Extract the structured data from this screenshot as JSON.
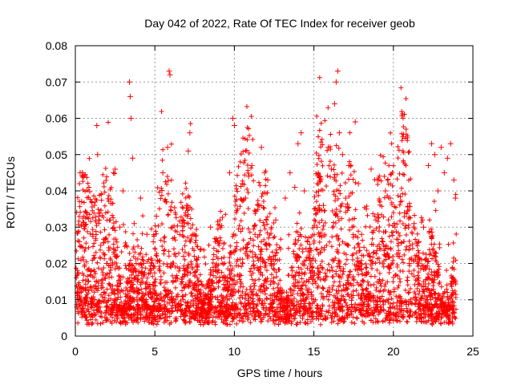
{
  "chart_data": {
    "type": "scatter",
    "title": "Day 042 of 2022, Rate Of TEC Index for receiver geob",
    "xlabel": "GPS time / hours",
    "ylabel": "ROTI / TECUs",
    "xlim": [
      0,
      25
    ],
    "ylim": [
      0,
      0.08
    ],
    "x_ticks": [
      0,
      5,
      10,
      15,
      20,
      25
    ],
    "y_ticks": [
      0,
      0.01,
      0.02,
      0.03,
      0.04,
      0.05,
      0.06,
      0.07,
      0.08
    ],
    "x_tick_labels": [
      "0",
      "5",
      "10",
      "15",
      "20",
      "25"
    ],
    "y_tick_labels": [
      "0",
      "0.01",
      "0.02",
      "0.03",
      "0.04",
      "0.05",
      "0.06",
      "0.07",
      "0.08"
    ],
    "grid": true,
    "marker": "+",
    "marker_color": "#ff0000",
    "series": [
      {
        "points": [
          [
            0.1,
            0.008
          ],
          [
            0.2,
            0.012
          ],
          [
            0.25,
            0.026
          ],
          [
            0.3,
            0.045
          ],
          [
            0.4,
            0.037
          ],
          [
            0.5,
            0.021
          ],
          [
            0.6,
            0.01
          ],
          [
            0.7,
            0.034
          ],
          [
            0.8,
            0.015
          ],
          [
            0.9,
            0.006
          ],
          [
            1.0,
            0.018
          ],
          [
            1.1,
            0.028
          ],
          [
            1.2,
            0.036
          ],
          [
            1.35,
            0.058
          ],
          [
            1.4,
            0.05
          ],
          [
            1.5,
            0.009
          ],
          [
            1.6,
            0.025
          ],
          [
            1.8,
            0.012
          ],
          [
            2.0,
            0.02
          ],
          [
            2.2,
            0.032
          ],
          [
            2.4,
            0.045
          ],
          [
            2.5,
            0.046
          ],
          [
            2.6,
            0.022
          ],
          [
            2.8,
            0.03
          ],
          [
            3.0,
            0.04
          ],
          [
            3.2,
            0.025
          ],
          [
            3.4,
            0.07
          ],
          [
            3.45,
            0.066
          ],
          [
            3.5,
            0.06
          ],
          [
            3.6,
            0.049
          ],
          [
            3.7,
            0.031
          ],
          [
            3.9,
            0.015
          ],
          [
            4.1,
            0.038
          ],
          [
            4.3,
            0.02
          ],
          [
            4.5,
            0.028
          ],
          [
            4.7,
            0.012
          ],
          [
            4.9,
            0.026
          ],
          [
            5.1,
            0.033
          ],
          [
            5.3,
            0.018
          ],
          [
            5.5,
            0.045
          ],
          [
            5.7,
            0.037
          ],
          [
            5.8,
            0.052
          ],
          [
            5.9,
            0.073
          ],
          [
            5.95,
            0.072
          ],
          [
            6.1,
            0.03
          ],
          [
            6.3,
            0.016
          ],
          [
            6.5,
            0.009
          ],
          [
            6.8,
            0.022
          ],
          [
            7.0,
            0.036
          ],
          [
            7.1,
            0.051
          ],
          [
            7.2,
            0.056
          ],
          [
            7.4,
            0.028
          ],
          [
            7.6,
            0.014
          ],
          [
            7.9,
            0.024
          ],
          [
            8.2,
            0.011
          ],
          [
            8.5,
            0.03
          ],
          [
            8.8,
            0.019
          ],
          [
            9.1,
            0.032
          ],
          [
            9.4,
            0.013
          ],
          [
            9.7,
            0.045
          ],
          [
            9.9,
            0.06
          ],
          [
            10.0,
            0.058
          ],
          [
            10.2,
            0.035
          ],
          [
            10.5,
            0.042
          ],
          [
            10.7,
            0.038
          ],
          [
            10.9,
            0.044
          ],
          [
            11.1,
            0.047
          ],
          [
            11.3,
            0.028
          ],
          [
            11.5,
            0.036
          ],
          [
            11.7,
            0.052
          ],
          [
            11.9,
            0.045
          ],
          [
            12.1,
            0.043
          ],
          [
            12.3,
            0.02
          ],
          [
            12.6,
            0.032
          ],
          [
            12.9,
            0.024
          ],
          [
            13.2,
            0.038
          ],
          [
            13.5,
            0.045
          ],
          [
            13.8,
            0.041
          ],
          [
            14.0,
            0.053
          ],
          [
            14.2,
            0.056
          ],
          [
            14.4,
            0.04
          ],
          [
            14.6,
            0.026
          ],
          [
            14.9,
            0.018
          ],
          [
            15.2,
            0.03
          ],
          [
            15.4,
            0.023
          ],
          [
            15.6,
            0.036
          ],
          [
            15.9,
            0.052
          ],
          [
            16.1,
            0.046
          ],
          [
            16.3,
            0.064
          ],
          [
            16.4,
            0.07
          ],
          [
            16.5,
            0.073
          ],
          [
            16.6,
            0.056
          ],
          [
            16.8,
            0.05
          ],
          [
            17.0,
            0.038
          ],
          [
            17.2,
            0.047
          ],
          [
            17.4,
            0.03
          ],
          [
            17.6,
            0.059
          ],
          [
            17.8,
            0.042
          ],
          [
            18.0,
            0.028
          ],
          [
            18.3,
            0.035
          ],
          [
            18.6,
            0.046
          ],
          [
            18.9,
            0.032
          ],
          [
            19.2,
            0.024
          ],
          [
            19.5,
            0.04
          ],
          [
            19.8,
            0.038
          ],
          [
            20.1,
            0.03
          ],
          [
            20.4,
            0.022
          ],
          [
            20.7,
            0.034
          ],
          [
            21.0,
            0.02
          ],
          [
            21.3,
            0.031
          ],
          [
            21.6,
            0.026
          ],
          [
            21.9,
            0.03
          ],
          [
            22.2,
            0.047
          ],
          [
            22.4,
            0.053
          ],
          [
            22.6,
            0.05
          ],
          [
            22.8,
            0.04
          ],
          [
            23.0,
            0.052
          ],
          [
            23.2,
            0.045
          ],
          [
            23.4,
            0.049
          ],
          [
            23.6,
            0.053
          ],
          [
            23.8,
            0.043
          ],
          [
            23.9,
            0.038
          ]
        ]
      }
    ]
  }
}
